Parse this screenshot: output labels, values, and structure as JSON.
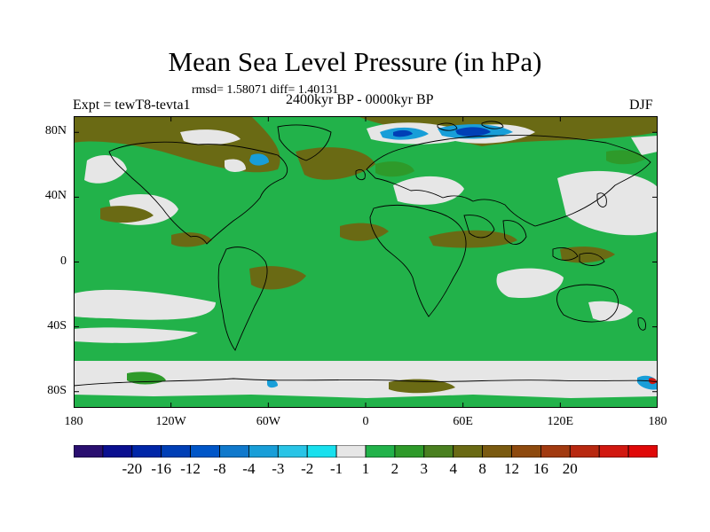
{
  "title": "Mean Sea Level Pressure (in hPa)",
  "stats": "rmsd= 1.58071 diff= 1.40131",
  "experiment": "Expt = tewT8-tevta1",
  "period": "2400kyr BP - 0000kyr BP",
  "season": "DJF",
  "lat_labels": [
    "80N",
    "40N",
    "0",
    "40S",
    "80S"
  ],
  "lat_values": [
    80,
    40,
    0,
    -40,
    -80
  ],
  "lon_labels": [
    "180",
    "120W",
    "60W",
    "0",
    "60E",
    "120E",
    "180"
  ],
  "lon_values": [
    -180,
    -120,
    -60,
    0,
    60,
    120,
    180
  ],
  "colorbar": {
    "labels": [
      "-20",
      "-16",
      "-12",
      "-8",
      "-4",
      "-3",
      "-2",
      "-1",
      "1",
      "2",
      "3",
      "4",
      "8",
      "12",
      "16",
      "20"
    ],
    "colors": [
      "#2a0f70",
      "#0a0f90",
      "#0026a8",
      "#003fb6",
      "#0056c8",
      "#1079cc",
      "#189ed8",
      "#28c4e6",
      "#18e0ee",
      "#e6e6e6",
      "#22b24a",
      "#2e9a2a",
      "#4a8020",
      "#6a6a14",
      "#7a5a10",
      "#8e4a0e",
      "#a23a10",
      "#b82810",
      "#d11810",
      "#e00808"
    ]
  },
  "colors": {
    "background_field": "#22b24a",
    "neutral": "#e6e6e6",
    "positive_low": "#2e9a2a",
    "positive_mid": "#6a6a14",
    "negative_low": "#189ed8",
    "negative_high": "#003fb6"
  }
}
